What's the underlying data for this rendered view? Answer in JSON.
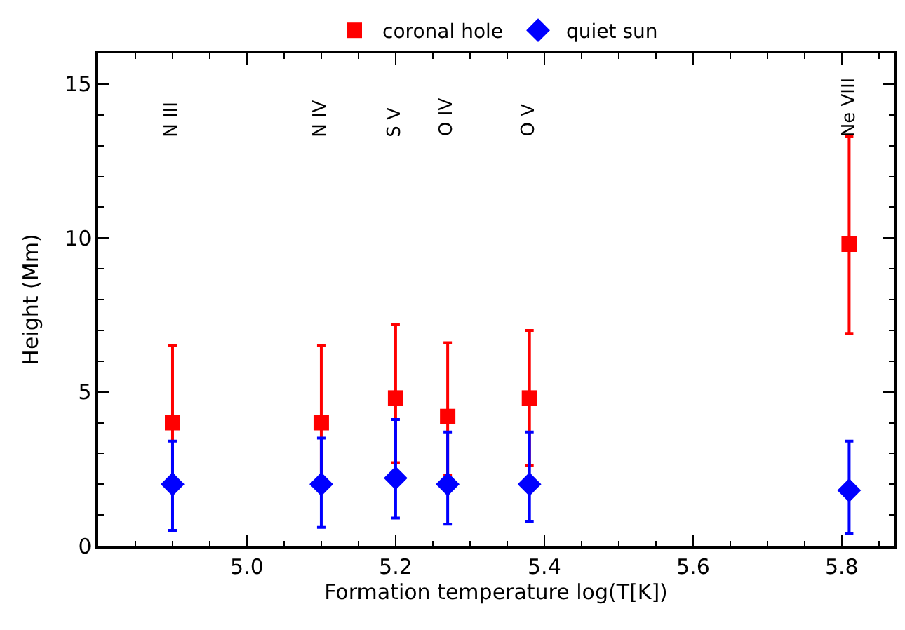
{
  "chart_data": {
    "type": "scatter",
    "xlabel": "Formation temperature log(T[K])",
    "ylabel": "Height (Mm)",
    "x": [
      4.9,
      5.1,
      5.2,
      5.27,
      5.38,
      5.81
    ],
    "series": [
      {
        "name": "coronal hole",
        "color": "#ff0000",
        "marker": "square",
        "values": [
          4.0,
          4.0,
          4.8,
          4.2,
          4.8,
          9.8
        ],
        "errors": [
          [
            2.1,
            6.5
          ],
          [
            2.1,
            6.5
          ],
          [
            2.7,
            7.2
          ],
          [
            2.3,
            6.6
          ],
          [
            2.6,
            7.0
          ],
          [
            6.9,
            13.3
          ]
        ]
      },
      {
        "name": "quiet sun",
        "color": "#0000ff",
        "marker": "diamond",
        "values": [
          2.0,
          2.0,
          2.2,
          2.0,
          2.0,
          1.8
        ],
        "errors": [
          [
            0.5,
            3.4
          ],
          [
            0.6,
            3.5
          ],
          [
            0.9,
            4.1
          ],
          [
            0.7,
            3.7
          ],
          [
            0.8,
            3.7
          ],
          [
            0.4,
            3.4
          ]
        ]
      }
    ],
    "annotations": [
      "N III",
      "N IV",
      "S V",
      "O IV",
      "O V",
      "Ne VIII"
    ],
    "xlim": [
      4.8,
      5.87
    ],
    "xticks": [
      {
        "value": 5.0,
        "label": "5.0"
      },
      {
        "value": 5.2,
        "label": "5.2"
      },
      {
        "value": 5.4,
        "label": "5.4"
      },
      {
        "value": 5.6,
        "label": "5.6"
      },
      {
        "value": 5.8,
        "label": "5.8"
      }
    ],
    "ylim": [
      0,
      16
    ],
    "yticks": [
      0,
      5,
      10,
      15
    ],
    "legend": "top"
  }
}
